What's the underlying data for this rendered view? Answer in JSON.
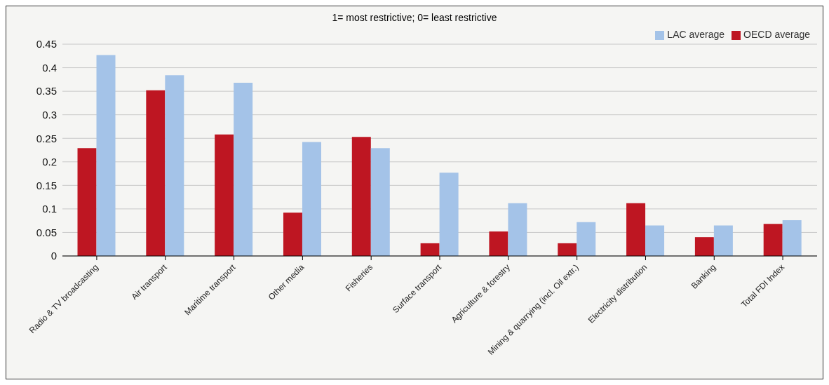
{
  "chart_data": {
    "type": "bar",
    "title": "1= most restrictive; 0= least restrictive",
    "categories": [
      "Radio & TV broadcasting",
      "Air transport",
      "Maritime transport",
      "Other media",
      "Fisheries",
      "Surface transport",
      "Agriculture & forestry",
      "Mining & quarrying (incl. Oil extr.)",
      "Electricity distribution",
      "Banking",
      "Total FDI Index"
    ],
    "series": [
      {
        "name": "OECD average",
        "color": "#be1622",
        "values": [
          0.229,
          0.352,
          0.258,
          0.092,
          0.253,
          0.027,
          0.052,
          0.027,
          0.112,
          0.04,
          0.068
        ]
      },
      {
        "name": "LAC average",
        "color": "#a4c3e8",
        "values": [
          0.427,
          0.384,
          0.368,
          0.242,
          0.229,
          0.177,
          0.112,
          0.072,
          0.065,
          0.065,
          0.076
        ]
      }
    ],
    "ylim": [
      0,
      0.45
    ],
    "yticks": [
      0,
      0.05,
      0.1,
      0.15,
      0.2,
      0.25,
      0.3,
      0.35,
      0.4,
      0.45
    ],
    "grid": "y",
    "legend": "top right"
  }
}
